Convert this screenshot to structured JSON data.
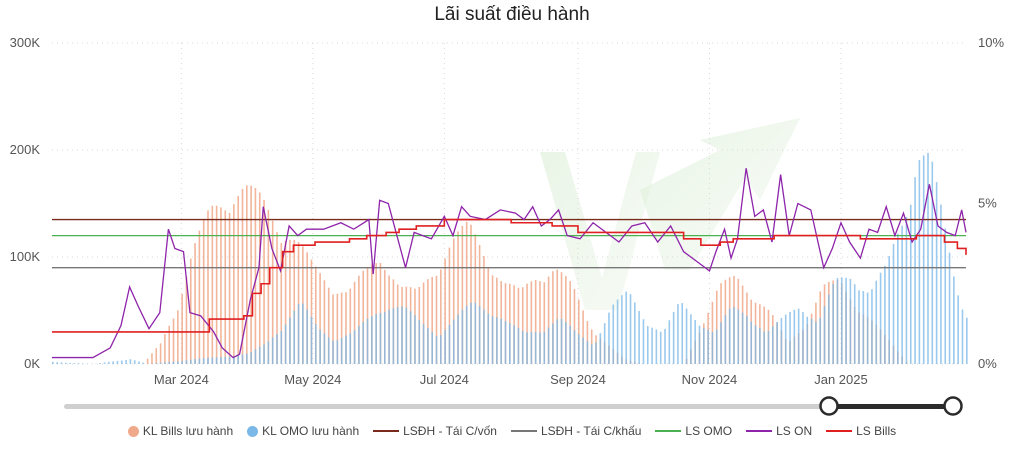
{
  "chart_data": {
    "type": "combo",
    "title": "Lãi suất điều hành",
    "x_ticks": [
      "Mar 2024",
      "May 2024",
      "Jul 2024",
      "Sep 2024",
      "Nov 2024",
      "Jan 2025"
    ],
    "x_range": [
      "2024-01-01",
      "2025-02-28"
    ],
    "y_left": {
      "ticks": [
        "0K",
        "100K",
        "200K",
        "300K"
      ],
      "range": [
        0,
        300000
      ]
    },
    "y_right": {
      "ticks": [
        "0%",
        "5%",
        "10%"
      ],
      "range": [
        0,
        10
      ]
    },
    "grid": true,
    "legend_position": "bottom",
    "series": [
      {
        "name": "KL Bills lưu hành",
        "kind": "bar",
        "axis": "left",
        "color": "#f0a98a",
        "points": [
          [
            "2024-02-12",
            0
          ],
          [
            "2024-02-20",
            20000
          ],
          [
            "2024-02-28",
            60000
          ],
          [
            "2024-03-06",
            110000
          ],
          [
            "2024-03-14",
            150000
          ],
          [
            "2024-03-22",
            170000
          ],
          [
            "2024-03-30",
            172000
          ],
          [
            "2024-04-07",
            160000
          ],
          [
            "2024-04-15",
            140000
          ],
          [
            "2024-04-23",
            120000
          ],
          [
            "2024-05-01",
            95000
          ],
          [
            "2024-05-09",
            80000
          ],
          [
            "2024-05-17",
            70000
          ],
          [
            "2024-05-25",
            90000
          ],
          [
            "2024-06-02",
            110000
          ],
          [
            "2024-06-10",
            75000
          ],
          [
            "2024-06-18",
            70000
          ],
          [
            "2024-06-26",
            95000
          ],
          [
            "2024-07-04",
            120000
          ],
          [
            "2024-07-12",
            135000
          ],
          [
            "2024-07-20",
            110000
          ],
          [
            "2024-07-28",
            80000
          ],
          [
            "2024-08-05",
            70000
          ],
          [
            "2024-08-13",
            90000
          ],
          [
            "2024-08-21",
            95000
          ],
          [
            "2024-08-29",
            75000
          ],
          [
            "2024-09-06",
            40000
          ],
          [
            "2024-09-14",
            20000
          ],
          [
            "2024-09-22",
            5000
          ],
          [
            "2024-09-30",
            0
          ],
          [
            "2024-10-20",
            0
          ],
          [
            "2024-10-28",
            40000
          ],
          [
            "2024-11-05",
            75000
          ],
          [
            "2024-11-13",
            85000
          ],
          [
            "2024-11-21",
            70000
          ],
          [
            "2024-11-29",
            50000
          ],
          [
            "2024-12-07",
            20000
          ],
          [
            "2024-12-15",
            40000
          ],
          [
            "2024-12-23",
            75000
          ],
          [
            "2024-12-31",
            80000
          ],
          [
            "2025-01-08",
            60000
          ],
          [
            "2025-01-16",
            40000
          ],
          [
            "2025-01-24",
            20000
          ],
          [
            "2025-02-01",
            0
          ]
        ]
      },
      {
        "name": "KL OMO lưu hành",
        "kind": "bar",
        "axis": "left",
        "color": "#7ab8e8",
        "points": [
          [
            "2024-01-01",
            2000
          ],
          [
            "2024-01-20",
            0
          ],
          [
            "2024-02-06",
            5000
          ],
          [
            "2024-02-14",
            0
          ],
          [
            "2024-04-01",
            10000
          ],
          [
            "2024-04-09",
            20000
          ],
          [
            "2024-04-17",
            40000
          ],
          [
            "2024-04-25",
            60000
          ],
          [
            "2024-05-03",
            35000
          ],
          [
            "2024-05-11",
            25000
          ],
          [
            "2024-05-19",
            30000
          ],
          [
            "2024-05-27",
            45000
          ],
          [
            "2024-06-04",
            60000
          ],
          [
            "2024-06-12",
            55000
          ],
          [
            "2024-06-20",
            40000
          ],
          [
            "2024-06-28",
            30000
          ],
          [
            "2024-07-06",
            45000
          ],
          [
            "2024-07-14",
            60000
          ],
          [
            "2024-07-22",
            55000
          ],
          [
            "2024-07-30",
            40000
          ],
          [
            "2024-08-07",
            30000
          ],
          [
            "2024-08-15",
            35000
          ],
          [
            "2024-08-23",
            45000
          ],
          [
            "2024-08-31",
            30000
          ],
          [
            "2024-09-08",
            20000
          ],
          [
            "2024-09-16",
            55000
          ],
          [
            "2024-09-24",
            70000
          ],
          [
            "2024-10-02",
            45000
          ],
          [
            "2024-10-10",
            30000
          ],
          [
            "2024-10-18",
            60000
          ],
          [
            "2024-10-26",
            45000
          ],
          [
            "2024-11-03",
            30000
          ],
          [
            "2024-11-11",
            55000
          ],
          [
            "2024-11-19",
            50000
          ],
          [
            "2024-11-27",
            30000
          ],
          [
            "2024-12-05",
            45000
          ],
          [
            "2024-12-13",
            60000
          ],
          [
            "2024-12-21",
            40000
          ],
          [
            "2024-12-29",
            80000
          ],
          [
            "2025-01-06",
            90000
          ],
          [
            "2025-01-14",
            70000
          ],
          [
            "2025-01-22",
            95000
          ],
          [
            "2025-01-30",
            150000
          ],
          [
            "2025-02-05",
            210000
          ],
          [
            "2025-02-11",
            200000
          ],
          [
            "2025-02-17",
            140000
          ],
          [
            "2025-02-23",
            80000
          ],
          [
            "2025-02-28",
            50000
          ]
        ]
      },
      {
        "name": "LSĐH - Tái C/vốn",
        "kind": "line",
        "axis": "right",
        "color": "#7a2a1a",
        "points": [
          [
            "2024-01-01",
            4.5
          ],
          [
            "2025-02-28",
            4.5
          ]
        ]
      },
      {
        "name": "LSĐH - Tái C/khấu",
        "kind": "line",
        "axis": "right",
        "color": "#777777",
        "points": [
          [
            "2024-01-01",
            3.0
          ],
          [
            "2025-02-28",
            3.0
          ]
        ]
      },
      {
        "name": "LS OMO",
        "kind": "line",
        "axis": "right",
        "color": "#4caf50",
        "points": [
          [
            "2024-01-01",
            4.0
          ],
          [
            "2025-02-28",
            4.0
          ]
        ]
      },
      {
        "name": "LS ON",
        "kind": "line",
        "axis": "right",
        "color": "#8e24aa",
        "points": [
          [
            "2024-01-01",
            0.2
          ],
          [
            "2024-01-20",
            0.2
          ],
          [
            "2024-01-28",
            0.5
          ],
          [
            "2024-02-02",
            1.2
          ],
          [
            "2024-02-06",
            2.4
          ],
          [
            "2024-02-10",
            1.8
          ],
          [
            "2024-02-15",
            1.1
          ],
          [
            "2024-02-20",
            1.6
          ],
          [
            "2024-02-24",
            4.2
          ],
          [
            "2024-02-27",
            3.6
          ],
          [
            "2024-03-02",
            3.5
          ],
          [
            "2024-03-05",
            1.6
          ],
          [
            "2024-03-10",
            1.5
          ],
          [
            "2024-03-16",
            1.0
          ],
          [
            "2024-03-20",
            0.5
          ],
          [
            "2024-03-25",
            0.2
          ],
          [
            "2024-03-28",
            0.3
          ],
          [
            "2024-04-02",
            2.0
          ],
          [
            "2024-04-06",
            3.0
          ],
          [
            "2024-04-08",
            4.9
          ],
          [
            "2024-04-12",
            3.6
          ],
          [
            "2024-04-16",
            2.9
          ],
          [
            "2024-04-20",
            4.3
          ],
          [
            "2024-04-24",
            4.0
          ],
          [
            "2024-04-28",
            4.2
          ],
          [
            "2024-05-06",
            4.2
          ],
          [
            "2024-05-14",
            4.4
          ],
          [
            "2024-05-20",
            4.2
          ],
          [
            "2024-05-27",
            4.5
          ],
          [
            "2024-05-29",
            2.8
          ],
          [
            "2024-06-01",
            5.1
          ],
          [
            "2024-06-05",
            5.0
          ],
          [
            "2024-06-09",
            4.0
          ],
          [
            "2024-06-13",
            3.0
          ],
          [
            "2024-06-17",
            4.1
          ],
          [
            "2024-06-21",
            4.0
          ],
          [
            "2024-06-25",
            3.9
          ],
          [
            "2024-07-01",
            4.6
          ],
          [
            "2024-07-05",
            4.0
          ],
          [
            "2024-07-09",
            4.9
          ],
          [
            "2024-07-13",
            4.6
          ],
          [
            "2024-07-20",
            4.5
          ],
          [
            "2024-07-27",
            4.8
          ],
          [
            "2024-08-03",
            4.7
          ],
          [
            "2024-08-07",
            4.5
          ],
          [
            "2024-08-11",
            4.9
          ],
          [
            "2024-08-15",
            4.3
          ],
          [
            "2024-08-19",
            4.5
          ],
          [
            "2024-08-23",
            4.8
          ],
          [
            "2024-08-27",
            4.0
          ],
          [
            "2024-09-02",
            3.9
          ],
          [
            "2024-09-08",
            4.4
          ],
          [
            "2024-09-14",
            4.1
          ],
          [
            "2024-09-20",
            3.8
          ],
          [
            "2024-09-26",
            4.3
          ],
          [
            "2024-10-02",
            4.4
          ],
          [
            "2024-10-08",
            3.8
          ],
          [
            "2024-10-14",
            4.3
          ],
          [
            "2024-10-20",
            3.5
          ],
          [
            "2024-10-26",
            3.2
          ],
          [
            "2024-11-01",
            2.9
          ],
          [
            "2024-11-04",
            3.5
          ],
          [
            "2024-11-08",
            4.2
          ],
          [
            "2024-11-11",
            3.3
          ],
          [
            "2024-11-14",
            3.9
          ],
          [
            "2024-11-18",
            6.1
          ],
          [
            "2024-11-22",
            4.6
          ],
          [
            "2024-11-26",
            4.8
          ],
          [
            "2024-11-30",
            3.8
          ],
          [
            "2024-12-04",
            5.9
          ],
          [
            "2024-12-08",
            4.0
          ],
          [
            "2024-12-12",
            5.0
          ],
          [
            "2024-12-18",
            4.8
          ],
          [
            "2024-12-24",
            3.0
          ],
          [
            "2024-12-28",
            3.6
          ],
          [
            "2025-01-01",
            4.4
          ],
          [
            "2025-01-05",
            3.8
          ],
          [
            "2025-01-10",
            3.3
          ],
          [
            "2025-01-14",
            4.2
          ],
          [
            "2025-01-18",
            4.1
          ],
          [
            "2025-01-22",
            4.9
          ],
          [
            "2025-01-26",
            4.0
          ],
          [
            "2025-01-30",
            4.7
          ],
          [
            "2025-02-03",
            3.8
          ],
          [
            "2025-02-07",
            4.2
          ],
          [
            "2025-02-11",
            5.6
          ],
          [
            "2025-02-15",
            4.3
          ],
          [
            "2025-02-19",
            4.1
          ],
          [
            "2025-02-23",
            4.0
          ],
          [
            "2025-02-26",
            4.8
          ],
          [
            "2025-02-28",
            4.1
          ]
        ]
      },
      {
        "name": "LS Bills",
        "kind": "step",
        "axis": "right",
        "color": "#e02020",
        "points": [
          [
            "2024-01-01",
            1.0
          ],
          [
            "2024-03-12",
            1.0
          ],
          [
            "2024-03-14",
            1.4
          ],
          [
            "2024-03-30",
            1.5
          ],
          [
            "2024-04-03",
            2.2
          ],
          [
            "2024-04-07",
            2.5
          ],
          [
            "2024-04-11",
            3.0
          ],
          [
            "2024-04-17",
            3.5
          ],
          [
            "2024-04-22",
            3.7
          ],
          [
            "2024-05-02",
            3.8
          ],
          [
            "2024-05-18",
            3.9
          ],
          [
            "2024-05-26",
            4.0
          ],
          [
            "2024-06-04",
            4.1
          ],
          [
            "2024-06-10",
            4.2
          ],
          [
            "2024-06-18",
            4.3
          ],
          [
            "2024-07-01",
            4.5
          ],
          [
            "2024-08-01",
            4.4
          ],
          [
            "2024-08-20",
            4.3
          ],
          [
            "2024-09-01",
            4.1
          ],
          [
            "2024-10-20",
            3.9
          ],
          [
            "2024-10-28",
            3.7
          ],
          [
            "2024-11-06",
            3.8
          ],
          [
            "2024-11-12",
            3.9
          ],
          [
            "2024-12-01",
            4.0
          ],
          [
            "2025-01-10",
            3.9
          ],
          [
            "2025-02-05",
            4.0
          ],
          [
            "2025-02-18",
            3.8
          ],
          [
            "2025-02-24",
            3.6
          ],
          [
            "2025-02-28",
            3.4
          ]
        ]
      }
    ]
  }
}
